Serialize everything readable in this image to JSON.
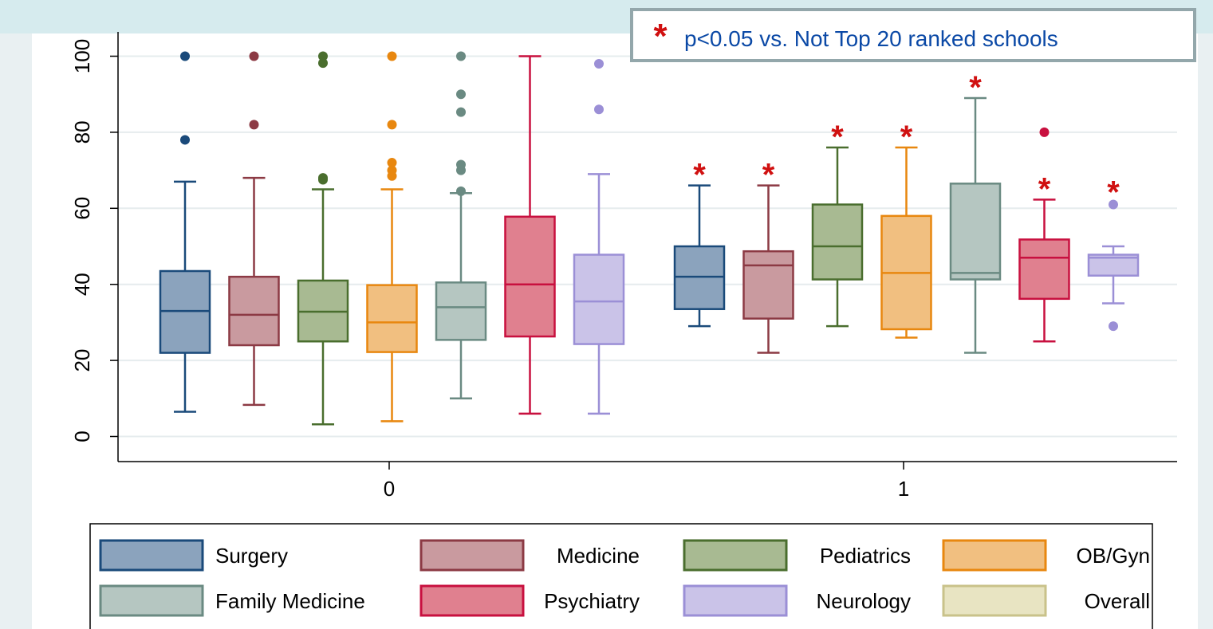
{
  "annotation": {
    "symbol": "*",
    "text": "p<0.05 vs. Not Top 20 ranked schools"
  },
  "chart_data": {
    "type": "box",
    "ylim": [
      0,
      100
    ],
    "yticks": [
      0,
      20,
      40,
      60,
      80,
      100
    ],
    "groups": [
      "0",
      "1"
    ],
    "grid": true,
    "legend_position": "bottom",
    "significance_symbol": "*",
    "series": [
      {
        "name": "Surgery",
        "color": "#1a4a7a",
        "fill": "#8ba3bd",
        "boxes": [
          {
            "group": "0",
            "min": 6.5,
            "q1": 22,
            "median": 33,
            "q3": 43.5,
            "max": 67,
            "outliers": [
              78,
              100
            ],
            "significant": false
          },
          {
            "group": "1",
            "min": 29,
            "q1": 33.5,
            "median": 42,
            "q3": 50,
            "max": 66,
            "outliers": [],
            "significant": true
          }
        ]
      },
      {
        "name": "Medicine",
        "color": "#8c3a44",
        "fill": "#c99a9f",
        "boxes": [
          {
            "group": "0",
            "min": 8.3,
            "q1": 24,
            "median": 32,
            "q3": 42,
            "max": 68,
            "outliers": [
              82,
              100
            ],
            "significant": false
          },
          {
            "group": "1",
            "min": 22,
            "q1": 31,
            "median": 45,
            "q3": 48.7,
            "max": 66,
            "outliers": [],
            "significant": true
          }
        ]
      },
      {
        "name": "Pediatrics",
        "color": "#4a6e2e",
        "fill": "#a8ba92",
        "boxes": [
          {
            "group": "0",
            "min": 3.2,
            "q1": 25,
            "median": 32.8,
            "q3": 41,
            "max": 65,
            "outliers": [
              67.5,
              68,
              98.2,
              100
            ],
            "significant": false
          },
          {
            "group": "1",
            "min": 29,
            "q1": 41.3,
            "median": 50,
            "q3": 61,
            "max": 76,
            "outliers": [],
            "significant": true
          }
        ]
      },
      {
        "name": "OB/Gyn",
        "color": "#e8870f",
        "fill": "#f1bf80",
        "boxes": [
          {
            "group": "0",
            "min": 4,
            "q1": 22.2,
            "median": 30,
            "q3": 39.8,
            "max": 65,
            "outliers": [
              68.5,
              70,
              72,
              82,
              100
            ],
            "significant": false
          },
          {
            "group": "1",
            "min": 26,
            "q1": 28.2,
            "median": 43,
            "q3": 58,
            "max": 76,
            "outliers": [],
            "significant": true
          }
        ]
      },
      {
        "name": "Family Medicine",
        "color": "#6a8a82",
        "fill": "#b5c6c1",
        "boxes": [
          {
            "group": "0",
            "min": 10,
            "q1": 25.4,
            "median": 34,
            "q3": 40.5,
            "max": 64,
            "outliers": [
              64.5,
              70,
              71.5,
              85.3,
              90,
              100
            ],
            "significant": false
          },
          {
            "group": "1",
            "min": 22,
            "q1": 41.3,
            "median": 43,
            "q3": 66.5,
            "max": 89,
            "outliers": [],
            "significant": true
          }
        ]
      },
      {
        "name": "Psychiatry",
        "color": "#c8103f",
        "fill": "#e0808f",
        "boxes": [
          {
            "group": "0",
            "min": 6,
            "q1": 26.3,
            "median": 40,
            "q3": 57.8,
            "max": 100,
            "outliers": [],
            "significant": false
          },
          {
            "group": "1",
            "min": 25,
            "q1": 36.2,
            "median": 47,
            "q3": 51.8,
            "max": 62.3,
            "outliers": [
              80
            ],
            "significant": true
          }
        ]
      },
      {
        "name": "Neurology",
        "color": "#9b8fd6",
        "fill": "#cac3e8",
        "boxes": [
          {
            "group": "0",
            "min": 6,
            "q1": 24.3,
            "median": 35.5,
            "q3": 47.8,
            "max": 69,
            "outliers": [
              86,
              98
            ],
            "significant": false
          },
          {
            "group": "1",
            "min": 35,
            "q1": 42.3,
            "median": 47,
            "q3": 47.8,
            "max": 50,
            "outliers": [
              29,
              61
            ],
            "significant": true
          }
        ]
      },
      {
        "name": "Overall",
        "color": "#c9c28a",
        "fill": "#e8e4c2",
        "boxes": []
      }
    ]
  }
}
